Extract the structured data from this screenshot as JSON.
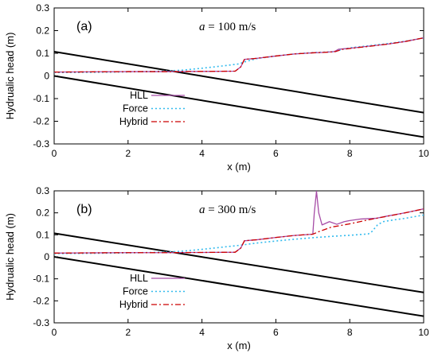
{
  "chart_data": [
    {
      "type": "line",
      "panel_label": "(a)",
      "annotation": {
        "variable": "a",
        "text": " = 100 m/s"
      },
      "xlabel": "x (m)",
      "ylabel": "Hydrualic head (m)",
      "xlim": [
        0,
        10
      ],
      "ylim": [
        -0.3,
        0.3
      ],
      "xticks": [
        "0",
        "2",
        "4",
        "6",
        "8",
        "10"
      ],
      "yticks": [
        "-0.3",
        "-0.2",
        "-0.1",
        "0",
        "0.1",
        "0.2",
        "0.3"
      ],
      "legend_position": "center-right",
      "grid": false,
      "reference_lines": [
        {
          "x": [
            0,
            10
          ],
          "y": [
            0.107,
            -0.162
          ],
          "color": "#000000"
        },
        {
          "x": [
            0,
            10
          ],
          "y": [
            0.0,
            -0.27
          ],
          "color": "#000000"
        }
      ],
      "series": [
        {
          "name": "HLL",
          "style": "solid",
          "color": "#a64ca6",
          "x": [
            0,
            1,
            2,
            3,
            4,
            4.9,
            5.05,
            5.15,
            5.5,
            6.0,
            6.5,
            7.0,
            7.3,
            7.55,
            7.6,
            7.7,
            7.85,
            8.0,
            8.5,
            9.0,
            9.5,
            10
          ],
          "y": [
            0.017,
            0.018,
            0.019,
            0.019,
            0.02,
            0.021,
            0.04,
            0.073,
            0.078,
            0.088,
            0.097,
            0.102,
            0.104,
            0.107,
            0.109,
            0.118,
            0.12,
            0.122,
            0.131,
            0.14,
            0.152,
            0.168
          ]
        },
        {
          "name": "Force",
          "style": "dotted",
          "color": "#33bbee",
          "x": [
            0,
            1,
            2,
            3,
            3.5,
            4,
            4.5,
            5.0,
            5.15,
            5.5,
            6.0,
            6.5,
            7.0,
            7.6,
            7.8,
            8.0,
            8.5,
            9.0,
            9.5,
            10
          ],
          "y": [
            0.015,
            0.016,
            0.018,
            0.021,
            0.026,
            0.034,
            0.043,
            0.053,
            0.062,
            0.077,
            0.088,
            0.097,
            0.103,
            0.107,
            0.118,
            0.124,
            0.133,
            0.142,
            0.153,
            0.168
          ]
        },
        {
          "name": "Hybrid",
          "style": "dashdot",
          "color": "#cc0000",
          "x": [
            0,
            1,
            2,
            3,
            4,
            4.9,
            5.05,
            5.15,
            5.5,
            6.0,
            6.5,
            7.0,
            7.3,
            7.6,
            7.8,
            8.0,
            8.5,
            9.0,
            9.5,
            10
          ],
          "y": [
            0.017,
            0.018,
            0.019,
            0.019,
            0.02,
            0.021,
            0.04,
            0.073,
            0.078,
            0.088,
            0.097,
            0.102,
            0.104,
            0.107,
            0.117,
            0.121,
            0.13,
            0.14,
            0.152,
            0.168
          ]
        }
      ]
    },
    {
      "type": "line",
      "panel_label": "(b)",
      "annotation": {
        "variable": "a",
        "text": " = 300 m/s"
      },
      "xlabel": "x (m)",
      "ylabel": "Hydrualic head (m)",
      "xlim": [
        0,
        10
      ],
      "ylim": [
        -0.3,
        0.3
      ],
      "xticks": [
        "0",
        "2",
        "4",
        "6",
        "8",
        "10"
      ],
      "yticks": [
        "-0.3",
        "-0.2",
        "-0.1",
        "0",
        "0.1",
        "0.2",
        "0.3"
      ],
      "legend_position": "center-right",
      "grid": false,
      "reference_lines": [
        {
          "x": [
            0,
            10
          ],
          "y": [
            0.107,
            -0.162
          ],
          "color": "#000000"
        },
        {
          "x": [
            0,
            10
          ],
          "y": [
            0.0,
            -0.27
          ],
          "color": "#000000"
        }
      ],
      "series": [
        {
          "name": "HLL",
          "style": "solid",
          "color": "#a64ca6",
          "x": [
            0,
            1,
            2,
            3,
            4,
            4.9,
            5.05,
            5.15,
            5.5,
            6.0,
            6.5,
            7.0,
            7.04,
            7.1,
            7.16,
            7.25,
            7.45,
            7.65,
            7.85,
            8.0,
            8.3,
            8.7,
            9.0,
            9.5,
            10
          ],
          "y": [
            0.017,
            0.018,
            0.019,
            0.019,
            0.02,
            0.021,
            0.04,
            0.073,
            0.078,
            0.088,
            0.097,
            0.103,
            0.2,
            0.298,
            0.2,
            0.145,
            0.16,
            0.148,
            0.16,
            0.165,
            0.172,
            0.175,
            0.185,
            0.2,
            0.218
          ]
        },
        {
          "name": "Force",
          "style": "dotted",
          "color": "#33bbee",
          "x": [
            0,
            1,
            2,
            3,
            3.5,
            4,
            4.5,
            5.0,
            5.5,
            6.0,
            6.5,
            7.0,
            7.5,
            8.0,
            8.5,
            8.6,
            8.75,
            8.9,
            9.2,
            9.5,
            10
          ],
          "y": [
            0.015,
            0.016,
            0.018,
            0.021,
            0.026,
            0.034,
            0.043,
            0.052,
            0.063,
            0.072,
            0.08,
            0.087,
            0.093,
            0.098,
            0.104,
            0.115,
            0.145,
            0.16,
            0.168,
            0.175,
            0.19
          ]
        },
        {
          "name": "Hybrid",
          "style": "dashdot",
          "color": "#cc0000",
          "x": [
            0,
            1,
            2,
            3,
            4,
            4.9,
            5.05,
            5.15,
            5.5,
            6.0,
            6.5,
            7.0,
            7.2,
            7.5,
            8.0,
            8.5,
            9.0,
            9.5,
            10
          ],
          "y": [
            0.017,
            0.018,
            0.019,
            0.019,
            0.02,
            0.021,
            0.04,
            0.073,
            0.078,
            0.088,
            0.097,
            0.103,
            0.117,
            0.135,
            0.15,
            0.168,
            0.184,
            0.2,
            0.218
          ]
        }
      ]
    }
  ]
}
